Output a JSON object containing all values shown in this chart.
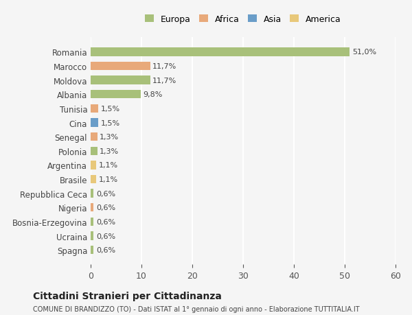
{
  "countries": [
    "Romania",
    "Marocco",
    "Moldova",
    "Albania",
    "Tunisia",
    "Cina",
    "Senegal",
    "Polonia",
    "Argentina",
    "Brasile",
    "Repubblica Ceca",
    "Nigeria",
    "Bosnia-Erzegovina",
    "Ucraina",
    "Spagna"
  ],
  "values": [
    51.0,
    11.7,
    11.7,
    9.8,
    1.5,
    1.5,
    1.3,
    1.3,
    1.1,
    1.1,
    0.6,
    0.6,
    0.6,
    0.6,
    0.6
  ],
  "labels": [
    "51,0%",
    "11,7%",
    "11,7%",
    "9,8%",
    "1,5%",
    "1,5%",
    "1,3%",
    "1,3%",
    "1,1%",
    "1,1%",
    "0,6%",
    "0,6%",
    "0,6%",
    "0,6%",
    "0,6%"
  ],
  "continents": [
    "Europa",
    "Africa",
    "Europa",
    "Europa",
    "Africa",
    "Asia",
    "Africa",
    "Europa",
    "America",
    "America",
    "Europa",
    "Africa",
    "Europa",
    "Europa",
    "Europa"
  ],
  "colors": {
    "Europa": "#a8c07a",
    "Africa": "#e8a97a",
    "Asia": "#6a9dc8",
    "America": "#e8c87a"
  },
  "legend_order": [
    "Europa",
    "Africa",
    "Asia",
    "America"
  ],
  "bg_color": "#f5f5f5",
  "grid_color": "#ffffff",
  "title": "Cittadini Stranieri per Cittadinanza",
  "subtitle": "COMUNE DI BRANDIZZO (TO) - Dati ISTAT al 1° gennaio di ogni anno - Elaborazione TUTTITALIA.IT",
  "xlim": [
    0,
    60
  ],
  "xticks": [
    0,
    10,
    20,
    30,
    40,
    50,
    60
  ]
}
